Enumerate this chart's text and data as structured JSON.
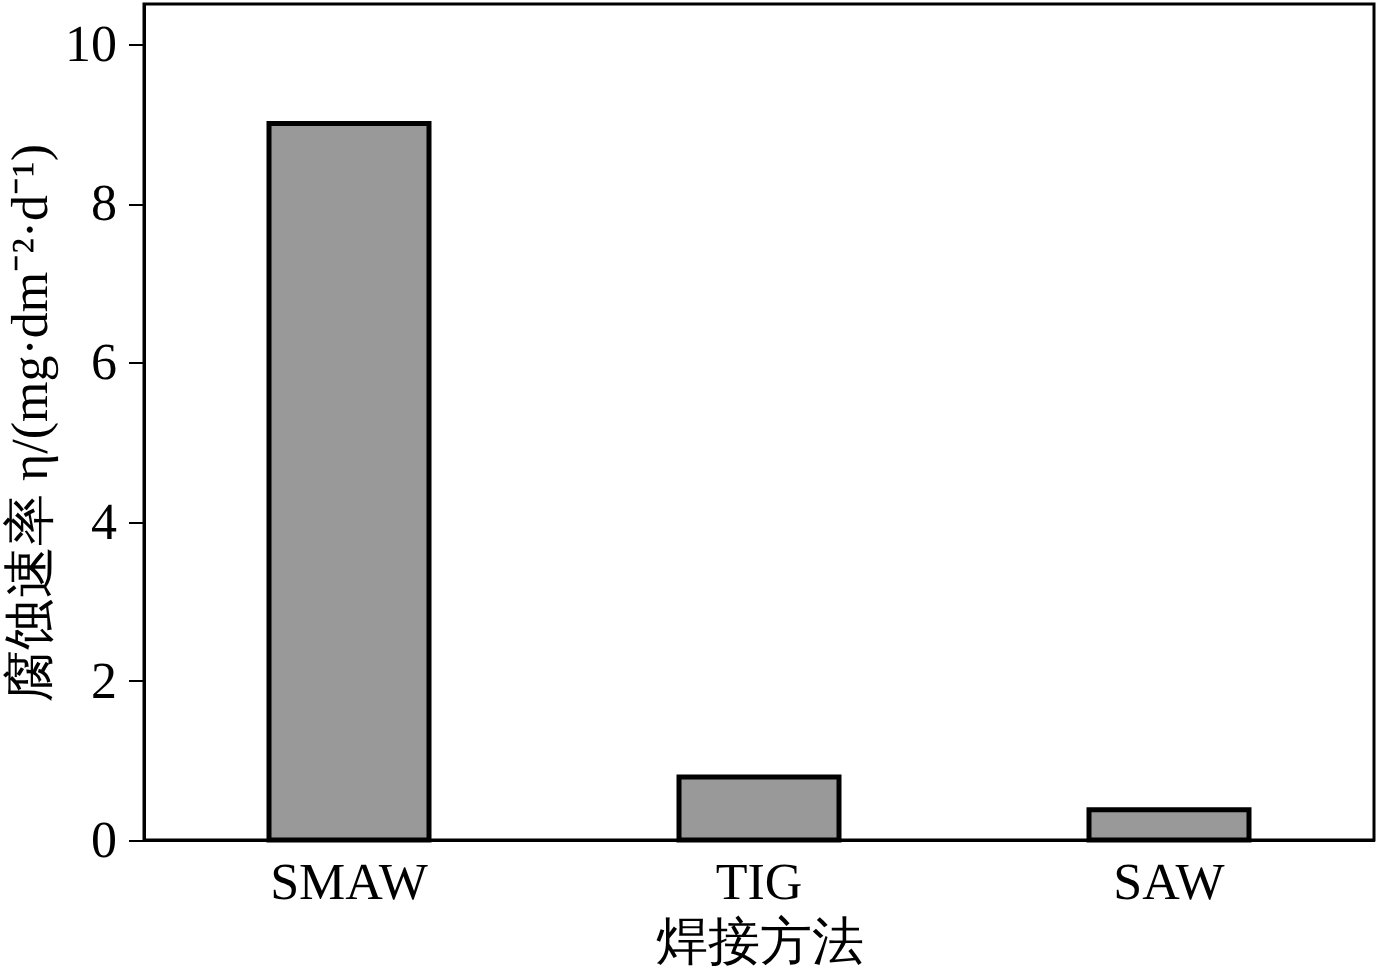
{
  "chart_data": {
    "type": "bar",
    "xlabel": "焊接方法",
    "ylabel": "腐蚀速率 η/(mg·dm⁻²·d⁻¹)",
    "categories": [
      "SMAW",
      "TIG",
      "SAW"
    ],
    "values": [
      9.0,
      0.79,
      0.38
    ],
    "color": "#999999",
    "ylim": [
      0,
      10.5
    ],
    "yticks": [
      0,
      2,
      4,
      6,
      8,
      10
    ],
    "grid": false
  }
}
